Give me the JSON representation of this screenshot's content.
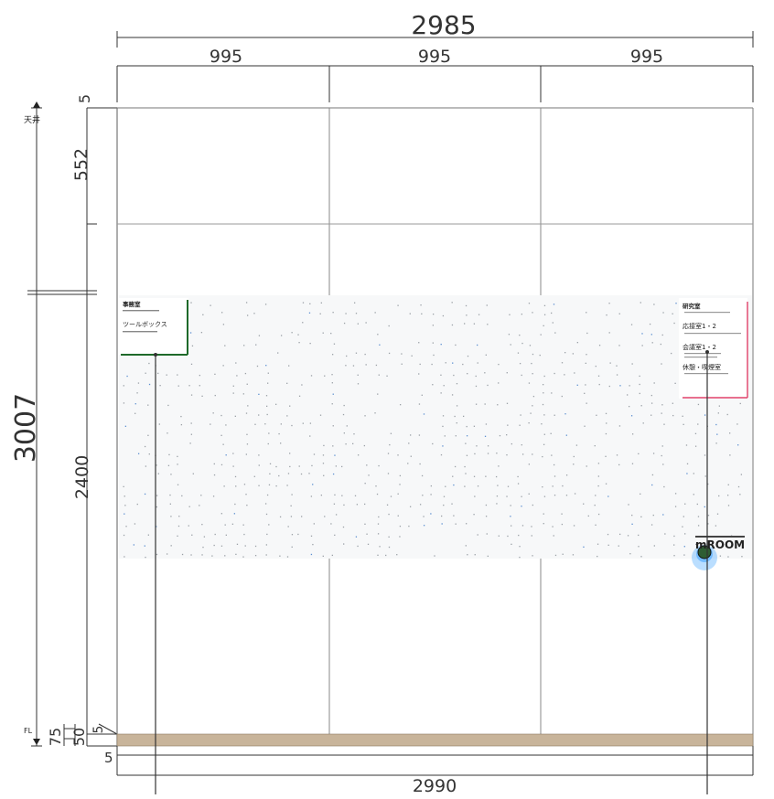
{
  "dimensions": {
    "overall_width_top": "2985",
    "panel_widths": [
      "995",
      "995",
      "995"
    ],
    "top_gap": "5",
    "ceiling_to_band": "552",
    "total_height": "3007",
    "band_height": "2400",
    "bottom_gaps": [
      "75",
      "50",
      "5"
    ],
    "left_bottom_offset": "5",
    "overall_width_bottom": "2990"
  },
  "labels": {
    "ceiling": "天井",
    "floor": "FL"
  },
  "left_sign": {
    "title": "事務室",
    "subtitle": "ツールボックス"
  },
  "right_sign": {
    "items": [
      "研究室",
      "応接室1・2",
      "会議室1・2",
      "休憩・喫煙室"
    ]
  },
  "logo": {
    "text": "mROOM"
  },
  "colors": {
    "wall_line": "#777777",
    "dimension_line": "#333333",
    "skirting": "#c8b49a",
    "left_sign_accent": "#1e6a2a",
    "right_sign_accent": "#e0406a",
    "dot": "#9aa0a6",
    "logo_blue": "#3aa0ff"
  }
}
